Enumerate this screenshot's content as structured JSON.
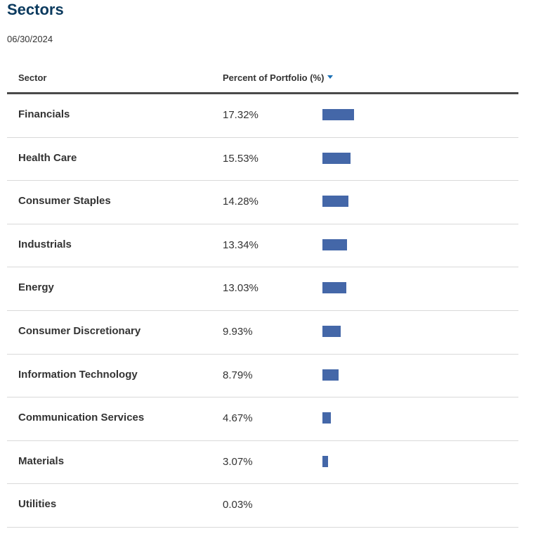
{
  "title": "Sectors",
  "as_of_date": "06/30/2024",
  "table": {
    "headers": {
      "sector": "Sector",
      "percent": "Percent of Portfolio (%)"
    },
    "sort_indicator": "caret-down-icon",
    "bar_color": "#4467a8",
    "rows": [
      {
        "sector": "Financials",
        "percent_label": "17.32%",
        "value": 17.32
      },
      {
        "sector": "Health Care",
        "percent_label": "15.53%",
        "value": 15.53
      },
      {
        "sector": "Consumer Staples",
        "percent_label": "14.28%",
        "value": 14.28
      },
      {
        "sector": "Industrials",
        "percent_label": "13.34%",
        "value": 13.34
      },
      {
        "sector": "Energy",
        "percent_label": "13.03%",
        "value": 13.03
      },
      {
        "sector": "Consumer Discretionary",
        "percent_label": "9.93%",
        "value": 9.93
      },
      {
        "sector": "Information Technology",
        "percent_label": "8.79%",
        "value": 8.79
      },
      {
        "sector": "Communication Services",
        "percent_label": "4.67%",
        "value": 4.67
      },
      {
        "sector": "Materials",
        "percent_label": "3.07%",
        "value": 3.07
      },
      {
        "sector": "Utilities",
        "percent_label": "0.03%",
        "value": 0.03
      }
    ]
  }
}
